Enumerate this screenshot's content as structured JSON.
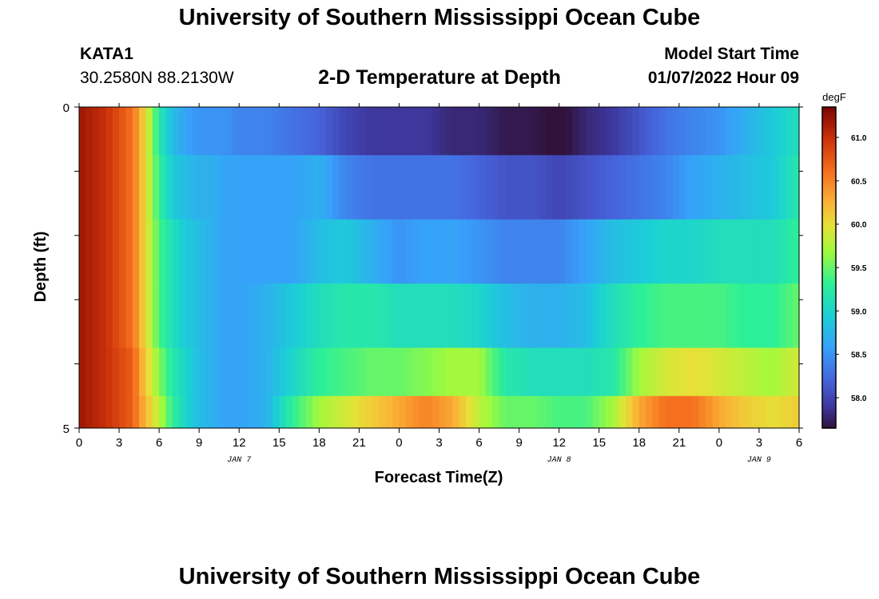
{
  "header": {
    "title": "University of Southern Mississippi Ocean Cube",
    "station_name": "KATA1",
    "station_coords": "30.2580N  88.2130W",
    "plot_title": "2-D Temperature at Depth",
    "model_start_label": "Model Start Time",
    "model_start_value": "01/07/2022 Hour 09"
  },
  "footer": {
    "title": "University of Southern Mississippi Ocean Cube"
  },
  "chart_data": {
    "type": "heatmap",
    "title": "2-D Temperature at Depth",
    "xlabel": "Forecast Time(Z)",
    "ylabel": "Depth (ft)",
    "x_ticks": [
      "0",
      "3",
      "6",
      "9",
      "12",
      "15",
      "18",
      "21",
      "0",
      "3",
      "6",
      "9",
      "12",
      "15",
      "18",
      "21",
      "0",
      "3",
      "6"
    ],
    "x_range_hours": [
      0,
      54
    ],
    "date_labels": [
      {
        "label": "JAN 7",
        "hour": 12
      },
      {
        "label": "JAN 8",
        "hour": 36
      },
      {
        "label": "JAN 9",
        "hour": 51
      }
    ],
    "y_ticks": [
      "0",
      "5"
    ],
    "y_range": [
      0,
      5
    ],
    "depth_rows": [
      0.25,
      1.25,
      2.25,
      3.25,
      4.25,
      4.75
    ],
    "x_hours": [
      0,
      2,
      4,
      5,
      6,
      7,
      8,
      9,
      10,
      11,
      12,
      14,
      16,
      18,
      20,
      22,
      24,
      26,
      28,
      30,
      32,
      34,
      36,
      38,
      40,
      42,
      44,
      46,
      48,
      50,
      52,
      54
    ],
    "values": [
      [
        61.2,
        61.0,
        60.6,
        60.0,
        59.2,
        58.8,
        58.6,
        58.5,
        58.5,
        58.5,
        58.4,
        58.4,
        58.3,
        58.2,
        58.0,
        57.9,
        57.9,
        57.9,
        57.8,
        57.8,
        57.7,
        57.7,
        57.6,
        57.8,
        57.9,
        58.1,
        58.3,
        58.4,
        58.5,
        58.7,
        58.9,
        59.1
      ],
      [
        61.2,
        61.0,
        60.6,
        60.0,
        59.3,
        58.9,
        58.8,
        58.7,
        58.7,
        58.6,
        58.6,
        58.6,
        58.6,
        58.7,
        58.4,
        58.3,
        58.3,
        58.3,
        58.3,
        58.2,
        58.1,
        58.1,
        58.0,
        58.1,
        58.2,
        58.3,
        58.4,
        58.6,
        58.7,
        58.8,
        58.9,
        59.2
      ],
      [
        61.2,
        61.0,
        60.6,
        60.0,
        59.4,
        59.1,
        58.9,
        58.8,
        58.7,
        58.6,
        58.6,
        58.6,
        58.6,
        58.8,
        58.9,
        58.7,
        58.5,
        58.6,
        58.6,
        58.5,
        58.4,
        58.4,
        58.4,
        58.6,
        58.8,
        58.9,
        59.0,
        59.0,
        59.1,
        59.1,
        59.1,
        59.3
      ],
      [
        61.2,
        61.0,
        60.6,
        60.0,
        59.4,
        59.1,
        58.9,
        58.8,
        58.7,
        58.6,
        58.6,
        58.7,
        58.9,
        59.1,
        59.2,
        59.2,
        59.1,
        59.1,
        59.1,
        59.0,
        58.8,
        58.7,
        58.7,
        58.8,
        59.1,
        59.3,
        59.4,
        59.4,
        59.4,
        59.3,
        59.3,
        59.5
      ],
      [
        61.2,
        61.0,
        60.7,
        60.1,
        59.6,
        59.2,
        59.0,
        58.8,
        58.7,
        58.6,
        58.6,
        58.7,
        59.0,
        59.3,
        59.4,
        59.5,
        59.5,
        59.6,
        59.7,
        59.7,
        59.2,
        59.1,
        59.1,
        59.1,
        59.2,
        59.7,
        59.9,
        60.0,
        59.9,
        59.8,
        59.7,
        59.9
      ],
      [
        61.2,
        61.0,
        60.7,
        60.2,
        59.8,
        59.3,
        59.0,
        58.8,
        58.7,
        58.6,
        58.6,
        58.7,
        59.3,
        59.7,
        59.9,
        60.1,
        60.3,
        60.5,
        60.3,
        59.8,
        59.5,
        59.5,
        59.4,
        59.4,
        59.7,
        60.3,
        60.6,
        60.6,
        60.3,
        60.1,
        60.0,
        60.1
      ]
    ],
    "colorbar": {
      "unit": "degF",
      "ticks": [
        "58.0",
        "58.5",
        "59.0",
        "59.5",
        "60.0",
        "60.5",
        "61.0"
      ],
      "range": [
        57.65,
        61.35
      ]
    }
  }
}
